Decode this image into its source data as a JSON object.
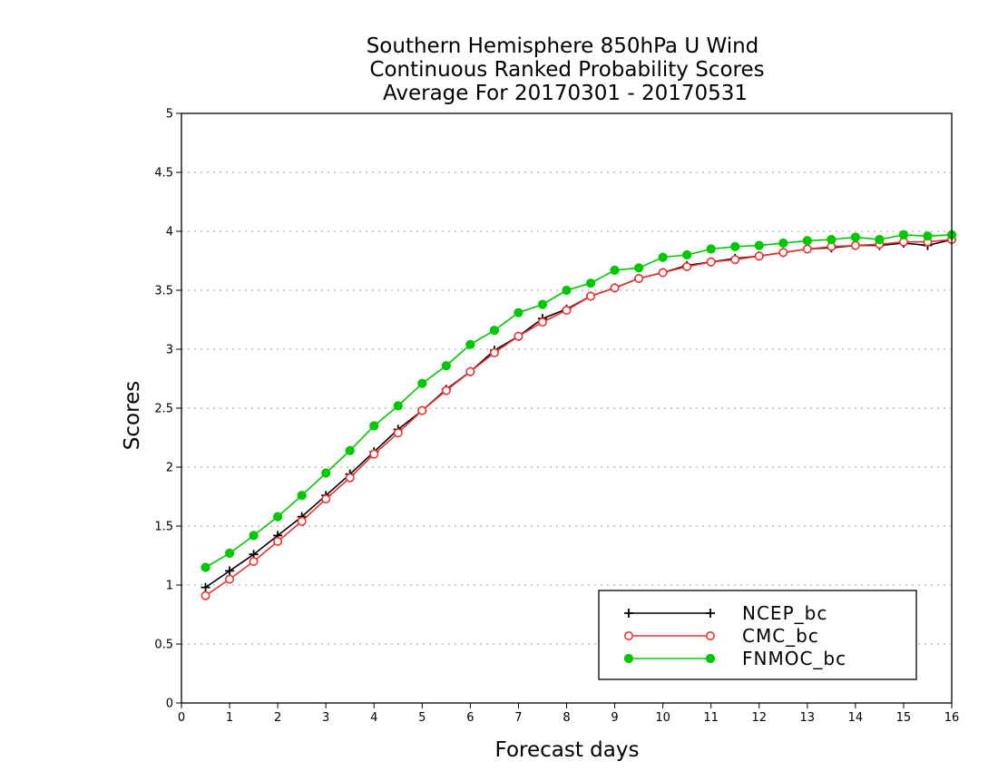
{
  "chart_data": {
    "type": "line",
    "title": [
      "Southern Hemisphere 850hPa U Wind",
      "Continuous Ranked Probability Scores",
      "Average For 20170301 - 20170531"
    ],
    "xlabel": "Forecast days",
    "ylabel": "Scores",
    "xlim": [
      0,
      16
    ],
    "ylim": [
      0,
      5
    ],
    "x_ticks": [
      "0",
      "1",
      "2",
      "3",
      "4",
      "5",
      "6",
      "7",
      "8",
      "9",
      "10",
      "11",
      "12",
      "13",
      "14",
      "15",
      "16"
    ],
    "y_ticks": [
      "0",
      "0.5",
      "1",
      "1.5",
      "2",
      "2.5",
      "3",
      "3.5",
      "4",
      "4.5",
      "5"
    ],
    "grid": "horizontal-dotted",
    "legend": "bottom-right",
    "x": [
      0.5,
      1,
      1.5,
      2,
      2.5,
      3,
      3.5,
      4,
      4.5,
      5,
      5.5,
      6,
      6.5,
      7,
      7.5,
      8,
      8.5,
      9,
      9.5,
      10,
      10.5,
      11,
      11.5,
      12,
      12.5,
      13,
      13.5,
      14,
      14.5,
      15,
      15.5,
      16
    ],
    "series": [
      {
        "name": "NCEP_bc",
        "color": "#000000",
        "marker": "plus",
        "values": [
          0.98,
          1.12,
          1.26,
          1.42,
          1.58,
          1.76,
          1.94,
          2.13,
          2.32,
          2.48,
          2.66,
          2.81,
          2.99,
          3.11,
          3.26,
          3.34,
          3.45,
          3.52,
          3.6,
          3.65,
          3.71,
          3.74,
          3.77,
          3.79,
          3.82,
          3.85,
          3.86,
          3.88,
          3.88,
          3.9,
          3.88,
          3.93
        ]
      },
      {
        "name": "CMC_bc",
        "color": "#ee3030",
        "marker": "open-circle",
        "values": [
          0.91,
          1.05,
          1.2,
          1.37,
          1.54,
          1.73,
          1.91,
          2.11,
          2.29,
          2.48,
          2.65,
          2.81,
          2.97,
          3.11,
          3.23,
          3.33,
          3.45,
          3.52,
          3.6,
          3.65,
          3.7,
          3.74,
          3.76,
          3.79,
          3.82,
          3.85,
          3.87,
          3.88,
          3.89,
          3.91,
          3.91,
          3.93
        ]
      },
      {
        "name": "FNMOC_bc",
        "color": "#00c800",
        "marker": "filled-circle",
        "values": [
          1.15,
          1.27,
          1.42,
          1.58,
          1.76,
          1.95,
          2.14,
          2.35,
          2.52,
          2.71,
          2.86,
          3.04,
          3.16,
          3.31,
          3.38,
          3.5,
          3.56,
          3.67,
          3.69,
          3.78,
          3.8,
          3.85,
          3.87,
          3.88,
          3.9,
          3.92,
          3.93,
          3.95,
          3.93,
          3.97,
          3.96,
          3.97
        ]
      }
    ]
  }
}
